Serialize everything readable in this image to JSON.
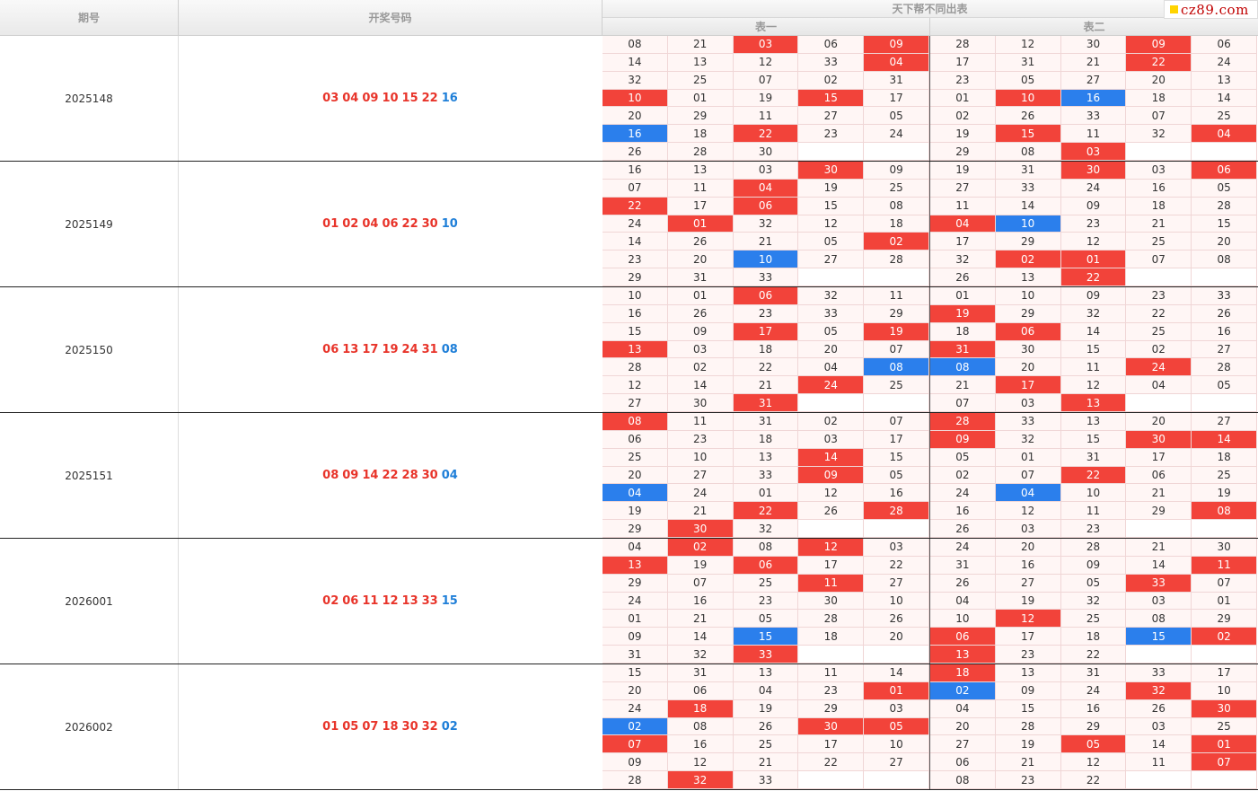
{
  "header": {
    "col_period": "期号",
    "col_numbers": "开奖号码",
    "col_tables": "天下帮不同出表",
    "table1": "表一",
    "table2": "表二"
  },
  "logo": {
    "text": "cz89.com"
  },
  "colors": {
    "red": "#f2433a",
    "blue": "#2b7fec",
    "cell_bg": "#fff6f5"
  },
  "rows": [
    {
      "period": "2025148",
      "red_numbers": [
        "03",
        "04",
        "09",
        "10",
        "15",
        "22"
      ],
      "blue_number": "16",
      "table1": [
        [
          "08",
          "21",
          "03",
          "06",
          "09"
        ],
        [
          "14",
          "13",
          "12",
          "33",
          "04"
        ],
        [
          "32",
          "25",
          "07",
          "02",
          "31"
        ],
        [
          "10",
          "01",
          "19",
          "15",
          "17"
        ],
        [
          "20",
          "29",
          "11",
          "27",
          "05"
        ],
        [
          "16",
          "18",
          "22",
          "23",
          "24"
        ],
        [
          "26",
          "28",
          "30",
          "",
          ""
        ]
      ],
      "table2": [
        [
          "28",
          "12",
          "30",
          "09",
          "06"
        ],
        [
          "17",
          "31",
          "21",
          "22",
          "24"
        ],
        [
          "23",
          "05",
          "27",
          "20",
          "13"
        ],
        [
          "01",
          "10",
          "16",
          "18",
          "14"
        ],
        [
          "02",
          "26",
          "33",
          "07",
          "25"
        ],
        [
          "19",
          "15",
          "11",
          "32",
          "04"
        ],
        [
          "29",
          "08",
          "03",
          "",
          ""
        ]
      ]
    },
    {
      "period": "2025149",
      "red_numbers": [
        "01",
        "02",
        "04",
        "06",
        "22",
        "30"
      ],
      "blue_number": "10",
      "table1": [
        [
          "16",
          "13",
          "03",
          "30",
          "09"
        ],
        [
          "07",
          "11",
          "04",
          "19",
          "25"
        ],
        [
          "22",
          "17",
          "06",
          "15",
          "08"
        ],
        [
          "24",
          "01",
          "32",
          "12",
          "18"
        ],
        [
          "14",
          "26",
          "21",
          "05",
          "02"
        ],
        [
          "23",
          "20",
          "10",
          "27",
          "28"
        ],
        [
          "29",
          "31",
          "33",
          "",
          ""
        ]
      ],
      "table2": [
        [
          "19",
          "31",
          "30",
          "03",
          "06"
        ],
        [
          "27",
          "33",
          "24",
          "16",
          "05"
        ],
        [
          "11",
          "14",
          "09",
          "18",
          "28"
        ],
        [
          "04",
          "10",
          "23",
          "21",
          "15"
        ],
        [
          "17",
          "29",
          "12",
          "25",
          "20"
        ],
        [
          "32",
          "02",
          "01",
          "07",
          "08"
        ],
        [
          "26",
          "13",
          "22",
          "",
          ""
        ]
      ]
    },
    {
      "period": "2025150",
      "red_numbers": [
        "06",
        "13",
        "17",
        "19",
        "24",
        "31"
      ],
      "blue_number": "08",
      "table1": [
        [
          "10",
          "01",
          "06",
          "32",
          "11"
        ],
        [
          "16",
          "26",
          "23",
          "33",
          "29"
        ],
        [
          "15",
          "09",
          "17",
          "05",
          "19"
        ],
        [
          "13",
          "03",
          "18",
          "20",
          "07"
        ],
        [
          "28",
          "02",
          "22",
          "04",
          "08"
        ],
        [
          "12",
          "14",
          "21",
          "24",
          "25"
        ],
        [
          "27",
          "30",
          "31",
          "",
          ""
        ]
      ],
      "table2": [
        [
          "01",
          "10",
          "09",
          "23",
          "33"
        ],
        [
          "19",
          "29",
          "32",
          "22",
          "26"
        ],
        [
          "18",
          "06",
          "14",
          "25",
          "16"
        ],
        [
          "31",
          "30",
          "15",
          "02",
          "27"
        ],
        [
          "08",
          "20",
          "11",
          "24",
          "28"
        ],
        [
          "21",
          "17",
          "12",
          "04",
          "05"
        ],
        [
          "07",
          "03",
          "13",
          "",
          ""
        ]
      ]
    },
    {
      "period": "2025151",
      "red_numbers": [
        "08",
        "09",
        "14",
        "22",
        "28",
        "30"
      ],
      "blue_number": "04",
      "table1": [
        [
          "08",
          "11",
          "31",
          "02",
          "07"
        ],
        [
          "06",
          "23",
          "18",
          "03",
          "17"
        ],
        [
          "25",
          "10",
          "13",
          "14",
          "15"
        ],
        [
          "20",
          "27",
          "33",
          "09",
          "05"
        ],
        [
          "04",
          "24",
          "01",
          "12",
          "16"
        ],
        [
          "19",
          "21",
          "22",
          "26",
          "28"
        ],
        [
          "29",
          "30",
          "32",
          "",
          ""
        ]
      ],
      "table2": [
        [
          "28",
          "33",
          "13",
          "20",
          "27"
        ],
        [
          "09",
          "32",
          "15",
          "30",
          "14"
        ],
        [
          "05",
          "01",
          "31",
          "17",
          "18"
        ],
        [
          "02",
          "07",
          "22",
          "06",
          "25"
        ],
        [
          "24",
          "04",
          "10",
          "21",
          "19"
        ],
        [
          "16",
          "12",
          "11",
          "29",
          "08"
        ],
        [
          "26",
          "03",
          "23",
          "",
          ""
        ]
      ]
    },
    {
      "period": "2026001",
      "red_numbers": [
        "02",
        "06",
        "11",
        "12",
        "13",
        "33"
      ],
      "blue_number": "15",
      "table1": [
        [
          "04",
          "02",
          "08",
          "12",
          "03"
        ],
        [
          "13",
          "19",
          "06",
          "17",
          "22"
        ],
        [
          "29",
          "07",
          "25",
          "11",
          "27"
        ],
        [
          "24",
          "16",
          "23",
          "30",
          "10"
        ],
        [
          "01",
          "21",
          "05",
          "28",
          "26"
        ],
        [
          "09",
          "14",
          "15",
          "18",
          "20"
        ],
        [
          "31",
          "32",
          "33",
          "",
          ""
        ]
      ],
      "table2": [
        [
          "24",
          "20",
          "28",
          "21",
          "30"
        ],
        [
          "31",
          "16",
          "09",
          "14",
          "11"
        ],
        [
          "26",
          "27",
          "05",
          "33",
          "07"
        ],
        [
          "04",
          "19",
          "32",
          "03",
          "01"
        ],
        [
          "10",
          "12",
          "25",
          "08",
          "29"
        ],
        [
          "06",
          "17",
          "18",
          "15",
          "02"
        ],
        [
          "13",
          "23",
          "22",
          "",
          ""
        ]
      ]
    },
    {
      "period": "2026002",
      "red_numbers": [
        "01",
        "05",
        "07",
        "18",
        "30",
        "32"
      ],
      "blue_number": "02",
      "table1": [
        [
          "15",
          "31",
          "13",
          "11",
          "14"
        ],
        [
          "20",
          "06",
          "04",
          "23",
          "01"
        ],
        [
          "24",
          "18",
          "19",
          "29",
          "03"
        ],
        [
          "02",
          "08",
          "26",
          "30",
          "05"
        ],
        [
          "07",
          "16",
          "25",
          "17",
          "10"
        ],
        [
          "09",
          "12",
          "21",
          "22",
          "27"
        ],
        [
          "28",
          "32",
          "33",
          "",
          ""
        ]
      ],
      "table2": [
        [
          "18",
          "13",
          "31",
          "33",
          "17"
        ],
        [
          "02",
          "09",
          "24",
          "32",
          "10"
        ],
        [
          "04",
          "15",
          "16",
          "26",
          "30"
        ],
        [
          "20",
          "28",
          "29",
          "03",
          "25"
        ],
        [
          "27",
          "19",
          "05",
          "14",
          "01"
        ],
        [
          "06",
          "21",
          "12",
          "11",
          "07"
        ],
        [
          "08",
          "23",
          "22",
          "",
          ""
        ]
      ]
    }
  ]
}
